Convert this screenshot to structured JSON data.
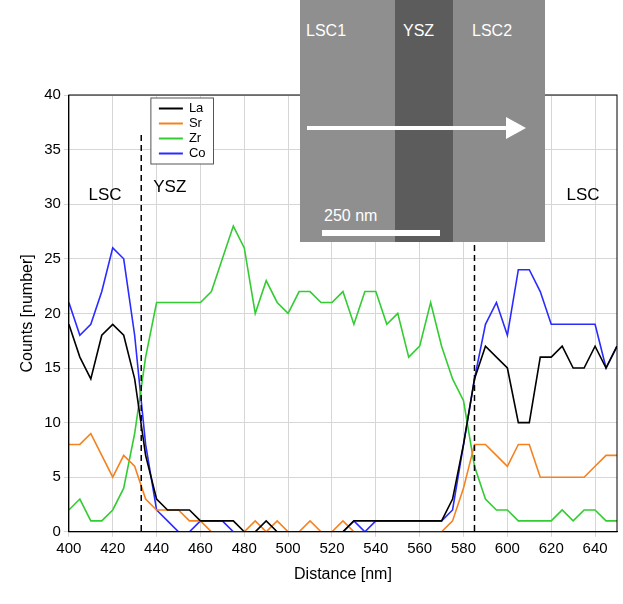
{
  "chart_data": {
    "type": "line",
    "x_label": "Distance [nm]",
    "y_label": "Counts [number]",
    "x": [
      400,
      405,
      410,
      415,
      420,
      425,
      430,
      435,
      440,
      445,
      450,
      455,
      460,
      465,
      470,
      475,
      480,
      485,
      490,
      495,
      500,
      505,
      510,
      515,
      520,
      525,
      530,
      535,
      540,
      545,
      550,
      555,
      560,
      565,
      570,
      575,
      580,
      585,
      590,
      595,
      600,
      605,
      610,
      615,
      620,
      625,
      630,
      635,
      640,
      645,
      650
    ],
    "series": [
      {
        "name": "La",
        "color": "#000000",
        "values": [
          19,
          16,
          14,
          18,
          19,
          18,
          14,
          7,
          3,
          2,
          2,
          2,
          1,
          1,
          1,
          1,
          0,
          0,
          1,
          0,
          0,
          0,
          0,
          0,
          0,
          0,
          1,
          1,
          1,
          1,
          1,
          1,
          1,
          1,
          1,
          3,
          8,
          14,
          17,
          16,
          15,
          10,
          10,
          16,
          16,
          17,
          15,
          15,
          17,
          15,
          17
        ]
      },
      {
        "name": "Sr",
        "color": "#f58220",
        "values": [
          8,
          8,
          9,
          7,
          5,
          7,
          6,
          3,
          2,
          2,
          2,
          1,
          1,
          0,
          0,
          0,
          0,
          1,
          0,
          1,
          0,
          0,
          1,
          0,
          0,
          1,
          0,
          0,
          0,
          0,
          0,
          0,
          0,
          0,
          0,
          1,
          4,
          8,
          8,
          7,
          6,
          8,
          8,
          5,
          5,
          5,
          5,
          5,
          6,
          7,
          7
        ]
      },
      {
        "name": "Zr",
        "color": "#33cc33",
        "values": [
          2,
          3,
          1,
          1,
          2,
          4,
          9,
          16,
          21,
          21,
          21,
          21,
          21,
          22,
          25,
          28,
          26,
          20,
          23,
          21,
          20,
          22,
          22,
          21,
          21,
          22,
          19,
          22,
          22,
          19,
          20,
          16,
          17,
          21,
          17,
          14,
          12,
          6,
          3,
          2,
          2,
          1,
          1,
          1,
          1,
          2,
          1,
          2,
          2,
          1,
          1
        ]
      },
      {
        "name": "Co",
        "color": "#2b2bff",
        "values": [
          21,
          18,
          19,
          22,
          26,
          25,
          18,
          8,
          2,
          1,
          0,
          0,
          1,
          1,
          1,
          0,
          0,
          0,
          0,
          0,
          0,
          0,
          0,
          0,
          0,
          0,
          1,
          0,
          1,
          1,
          1,
          1,
          1,
          1,
          1,
          2,
          8,
          14,
          19,
          21,
          18,
          24,
          24,
          22,
          19,
          19,
          19,
          19,
          19,
          15,
          17
        ]
      }
    ],
    "xlim": [
      400,
      650
    ],
    "xticks": [
      400,
      420,
      440,
      460,
      480,
      500,
      520,
      540,
      560,
      580,
      600,
      620,
      640
    ],
    "ylim": [
      0,
      40
    ],
    "yticks": [
      0,
      5,
      10,
      15,
      20,
      25,
      30,
      35,
      40
    ],
    "grid": true,
    "legend": "upper left",
    "vlines": [
      433,
      585
    ],
    "annotations": [
      "LSC",
      "YSZ",
      "LSC"
    ],
    "inset": {
      "labels": [
        "LSC1",
        "YSZ",
        "LSC2"
      ],
      "scale_bar": "250 nm"
    }
  }
}
